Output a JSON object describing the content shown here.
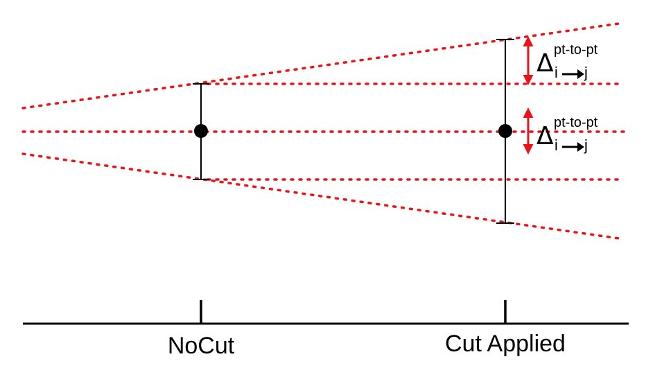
{
  "x_axis": {
    "labels": [
      "NoCut",
      "Cut Applied"
    ]
  },
  "annotations": [
    {
      "symbol": "Δ",
      "superscript": "pt-to-pt",
      "subscript_from": "i",
      "subscript_to": "j"
    },
    {
      "symbol": "Δ",
      "superscript": "pt-to-pt",
      "subscript_from": "i",
      "subscript_to": "j"
    }
  ],
  "colors": {
    "dotted_lines": "#e8141b",
    "arrows": "#e8141b",
    "error_bars": "#000000",
    "points": "#000000"
  }
}
